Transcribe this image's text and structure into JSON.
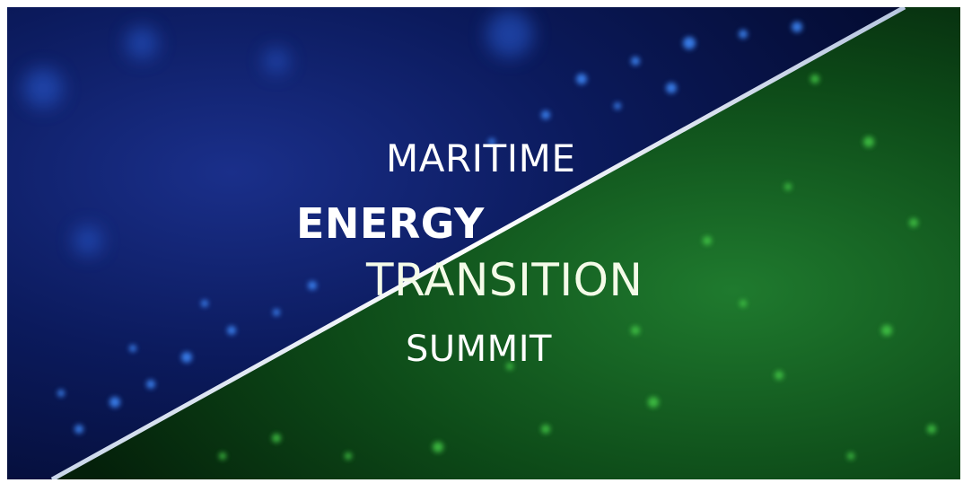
{
  "banner": {
    "title_lines": {
      "line1": "MARITIME",
      "line2": "ENERGY",
      "line3": "TRANSITION",
      "line4": "SUMMIT"
    },
    "colors": {
      "blue_dark": "#06134a",
      "blue_mid": "#1f49b8",
      "blue_light": "#2a9be0",
      "green_dark": "#062a10",
      "green_bright": "#4aa23a",
      "divider": "#e8eef7"
    }
  }
}
